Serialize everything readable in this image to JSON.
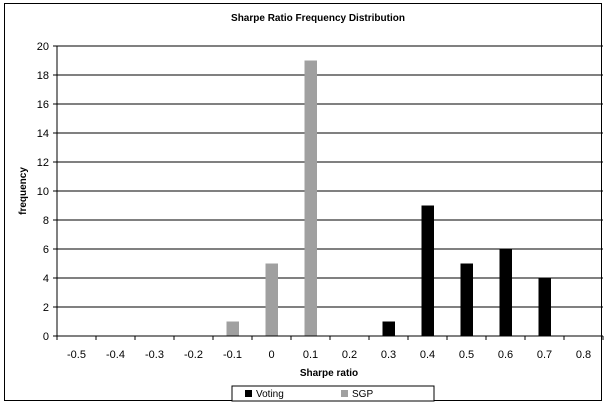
{
  "chart_data": {
    "type": "bar",
    "title": "Sharpe Ratio Frequency Distribution",
    "xlabel": "Sharpe ratio",
    "ylabel": "frequency",
    "categories": [
      "-0.5",
      "-0.4",
      "-0.3",
      "-0.2",
      "-0.1",
      "0",
      "0.1",
      "0.2",
      "0.3",
      "0.4",
      "0.5",
      "0.6",
      "0.7",
      "0.8"
    ],
    "ylim": [
      0,
      20
    ],
    "yticks": [
      0,
      2,
      4,
      6,
      8,
      10,
      12,
      14,
      16,
      18,
      20
    ],
    "grid": true,
    "legend_position": "bottom",
    "series": [
      {
        "name": "Voting",
        "color": "#000000",
        "values": [
          0,
          0,
          0,
          0,
          0,
          0,
          0,
          0,
          1,
          9,
          5,
          6,
          4,
          0
        ]
      },
      {
        "name": "SGP",
        "color": "#a0a0a0",
        "values": [
          0,
          0,
          0,
          0,
          1,
          5,
          19,
          0,
          0,
          0,
          0,
          0,
          0,
          0
        ]
      }
    ]
  }
}
